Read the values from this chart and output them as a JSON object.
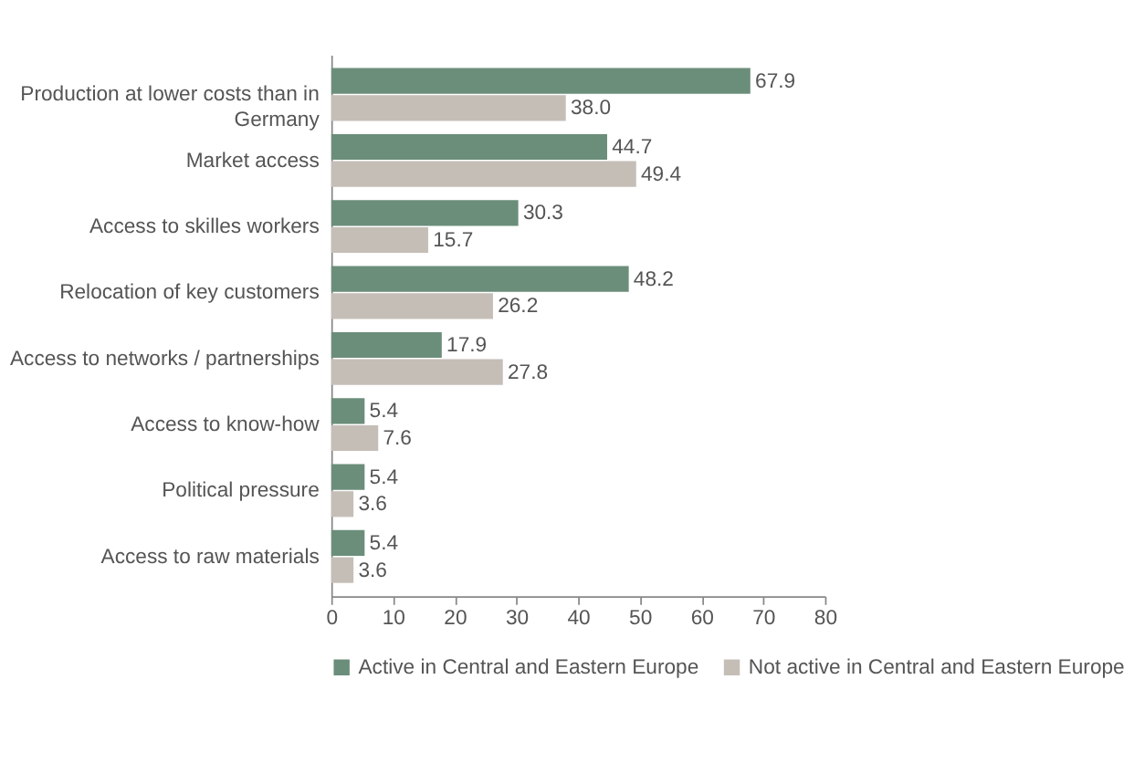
{
  "chart_data": {
    "type": "bar",
    "orientation": "horizontal",
    "categories": [
      "Production at lower costs than in Germany",
      "Market access",
      "Access to skilles workers",
      "Relocation of key customers",
      "Access to networks / partnerships",
      "Access to know-how",
      "Political pressure",
      "Access to raw materials"
    ],
    "series": [
      {
        "name": "Active in Central and Eastern Europe",
        "color": "#6b8e7a",
        "values": [
          67.9,
          44.7,
          30.3,
          48.2,
          17.9,
          5.4,
          5.4,
          5.4
        ],
        "value_labels": [
          "67.9",
          "44.7",
          "30.3",
          "48.2",
          "17.9",
          "5.4",
          "5.4",
          "5.4"
        ]
      },
      {
        "name": "Not active in Central and Eastern Europe",
        "color": "#c5beb7",
        "values": [
          38.0,
          49.4,
          15.7,
          26.2,
          27.8,
          7.6,
          3.6,
          3.6
        ],
        "value_labels": [
          "38.0",
          "49.4",
          "15.7",
          "26.2",
          "27.8",
          "7.6",
          "3.6",
          "3.6"
        ]
      }
    ],
    "xlim": [
      0,
      80
    ],
    "xticks": [
      0,
      10,
      20,
      30,
      40,
      50,
      60,
      70,
      80
    ],
    "grid": false,
    "legend": "bottom"
  }
}
